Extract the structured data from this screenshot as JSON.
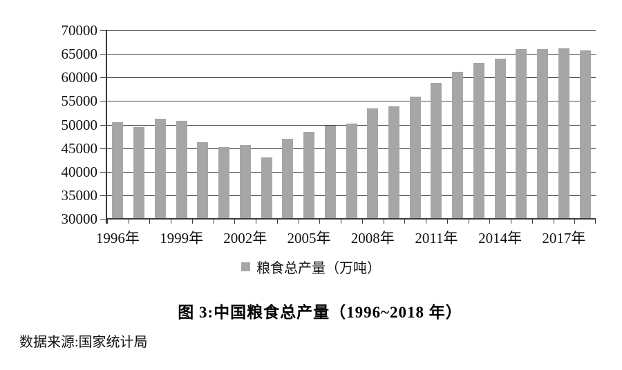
{
  "chart_data": {
    "type": "bar",
    "title": "",
    "categories": [
      "1996",
      "1997",
      "1998",
      "1999",
      "2000",
      "2001",
      "2002",
      "2003",
      "2004",
      "2005",
      "2006",
      "2007",
      "2008",
      "2009",
      "2010",
      "2011",
      "2012",
      "2013",
      "2014",
      "2015",
      "2016",
      "2017",
      "2018"
    ],
    "values": [
      50454,
      49417,
      51230,
      50839,
      46218,
      45264,
      45706,
      43070,
      46947,
      48402,
      49804,
      50160,
      53434,
      53941,
      55911,
      58849,
      61223,
      63048,
      63965,
      66060,
      66044,
      66161,
      65789
    ],
    "series_name": "粮食总产量（万吨）",
    "legend": [
      "粮食总产量（万吨）"
    ],
    "legend_position": "bottom",
    "xlabel": "",
    "ylabel": "",
    "ylim": [
      30000,
      70000
    ],
    "yticks": [
      30000,
      35000,
      40000,
      45000,
      50000,
      55000,
      60000,
      65000,
      70000
    ],
    "xtick_labels": [
      "1996年",
      "1999年",
      "2002年",
      "2005年",
      "2008年",
      "2011年",
      "2014年",
      "2017年"
    ],
    "xtick_every": 3,
    "grid": true,
    "bar_color": "#a6a6a6",
    "axis_color": "#3d3838"
  },
  "caption": "图 3:中国粮食总产量（1996~2018 年）",
  "source": "数据来源:国家统计局"
}
